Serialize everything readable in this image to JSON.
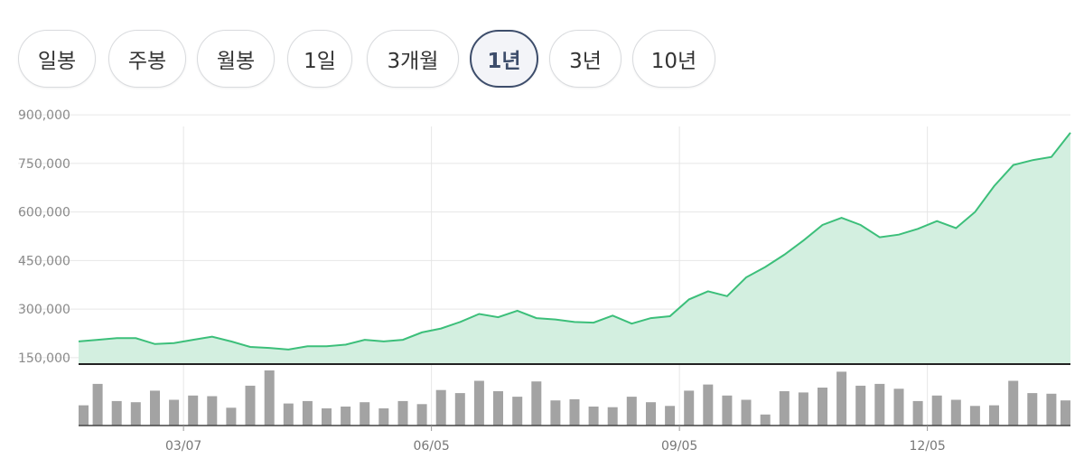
{
  "tabs": [
    {
      "label": "일봉",
      "active": false
    },
    {
      "label": "주봉",
      "active": false
    },
    {
      "label": "월봉",
      "active": false
    },
    {
      "label": "1일",
      "active": false
    },
    {
      "label": "3개월",
      "active": false
    },
    {
      "label": "1년",
      "active": true
    },
    {
      "label": "3년",
      "active": false
    },
    {
      "label": "10년",
      "active": false
    }
  ],
  "colors": {
    "line": "#3cbf7a",
    "area": "#d3efe0",
    "volume": "#a3a3a3",
    "active_tab": "#3d4d6b"
  },
  "chart_data": {
    "type": "area",
    "title": "",
    "xlabel": "",
    "ylabel": "",
    "ylim": [
      130000,
      920000
    ],
    "yticks": [
      "900,000",
      "750,000",
      "600,000",
      "450,000",
      "300,000",
      "150,000"
    ],
    "ytick_values": [
      900000,
      750000,
      600000,
      450000,
      300000,
      150000
    ],
    "xtick_labels": [
      "03/07",
      "06/05",
      "09/05",
      "12/05"
    ],
    "xtick_index": [
      5.5,
      18.5,
      31.5,
      44.5
    ],
    "grid": true,
    "series": [
      {
        "kind": "price",
        "values": [
          200000,
          205000,
          210000,
          210000,
          192000,
          195000,
          205000,
          215000,
          200000,
          183000,
          180000,
          175000,
          185000,
          185000,
          190000,
          205000,
          200000,
          205000,
          228000,
          240000,
          260000,
          285000,
          275000,
          295000,
          272000,
          268000,
          260000,
          258000,
          280000,
          255000,
          272000,
          278000,
          330000,
          355000,
          340000,
          398000,
          430000,
          468000,
          512000,
          560000,
          582000,
          560000,
          522000,
          530000,
          548000,
          572000,
          550000,
          600000,
          680000,
          745000,
          760000,
          770000,
          845000
        ]
      },
      {
        "kind": "volume",
        "values": [
          33,
          68,
          40,
          38,
          57,
          42,
          49,
          48,
          29,
          65,
          90,
          36,
          40,
          28,
          31,
          38,
          28,
          40,
          35,
          58,
          53,
          73,
          56,
          47,
          72,
          41,
          43,
          31,
          30,
          47,
          38,
          32,
          57,
          67,
          49,
          42,
          18,
          56,
          54,
          62,
          88,
          65,
          68,
          60,
          40,
          49,
          42,
          32,
          33,
          73,
          53,
          52,
          41
        ]
      }
    ]
  }
}
